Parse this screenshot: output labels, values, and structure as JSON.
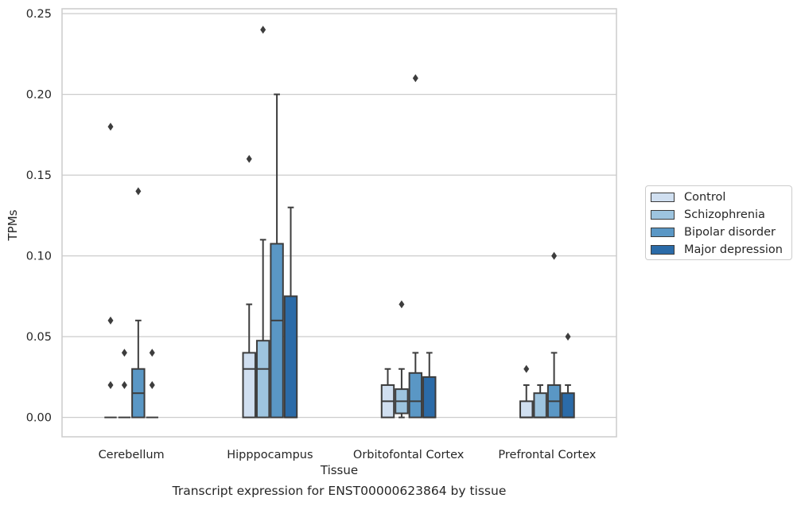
{
  "chart_data": {
    "type": "box",
    "xlabel": "Tissue",
    "ylabel": "TPMs",
    "caption": "Transcript expression for ENST00000623864 by tissue",
    "ylim": [
      -0.012,
      0.253
    ],
    "yticks": [
      "0.00",
      "0.05",
      "0.10",
      "0.15",
      "0.20",
      "0.25"
    ],
    "grid": true,
    "legend_position": "right",
    "categories": [
      "Cerebellum",
      "Hipppocampus",
      "Orbitofontal Cortex",
      "Prefrontal Cortex"
    ],
    "series": [
      {
        "name": "Control",
        "color": "#d0dff0"
      },
      {
        "name": "Schizophrenia",
        "color": "#9dc4df"
      },
      {
        "name": "Bipolar disorder",
        "color": "#5a97c5"
      },
      {
        "name": "Major depression",
        "color": "#2b6ba8"
      }
    ],
    "boxes": [
      [
        {
          "q1": 0,
          "median": 0,
          "q3": 0,
          "wlo": 0,
          "whi": 0,
          "outliers": [
            0.18,
            0.06,
            0.02
          ]
        },
        {
          "q1": 0,
          "median": 0,
          "q3": 0,
          "wlo": 0,
          "whi": 0,
          "outliers": [
            0.04,
            0.02
          ]
        },
        {
          "q1": 0,
          "median": 0.015,
          "q3": 0.03,
          "wlo": 0,
          "whi": 0.06,
          "outliers": [
            0.14
          ]
        },
        {
          "q1": 0,
          "median": 0,
          "q3": 0,
          "wlo": 0,
          "whi": 0,
          "outliers": [
            0.04,
            0.02
          ]
        }
      ],
      [
        {
          "q1": 0,
          "median": 0.03,
          "q3": 0.04,
          "wlo": 0,
          "whi": 0.07,
          "outliers": [
            0.16
          ]
        },
        {
          "q1": 0,
          "median": 0.03,
          "q3": 0.0475,
          "wlo": 0,
          "whi": 0.11,
          "outliers": [
            0.24
          ]
        },
        {
          "q1": 0,
          "median": 0.06,
          "q3": 0.1075,
          "wlo": 0,
          "whi": 0.2,
          "outliers": []
        },
        {
          "q1": 0,
          "median": 0,
          "q3": 0.075,
          "wlo": 0,
          "whi": 0.13,
          "outliers": []
        }
      ],
      [
        {
          "q1": 0,
          "median": 0.01,
          "q3": 0.02,
          "wlo": 0,
          "whi": 0.03,
          "outliers": []
        },
        {
          "q1": 0.0025,
          "median": 0.01,
          "q3": 0.0175,
          "wlo": 0,
          "whi": 0.03,
          "outliers": [
            0.07
          ]
        },
        {
          "q1": 0,
          "median": 0.01,
          "q3": 0.0275,
          "wlo": 0,
          "whi": 0.04,
          "outliers": [
            0.21
          ]
        },
        {
          "q1": 0,
          "median": 0,
          "q3": 0.025,
          "wlo": 0,
          "whi": 0.04,
          "outliers": []
        }
      ],
      [
        {
          "q1": 0,
          "median": 0,
          "q3": 0.01,
          "wlo": 0,
          "whi": 0.02,
          "outliers": [
            0.03
          ]
        },
        {
          "q1": 0,
          "median": 0,
          "q3": 0.015,
          "wlo": 0,
          "whi": 0.02,
          "outliers": []
        },
        {
          "q1": 0,
          "median": 0.01,
          "q3": 0.02,
          "wlo": 0,
          "whi": 0.04,
          "outliers": [
            0.1
          ]
        },
        {
          "q1": 0,
          "median": 0,
          "q3": 0.015,
          "wlo": 0,
          "whi": 0.02,
          "outliers": [
            0.05
          ]
        }
      ]
    ]
  }
}
